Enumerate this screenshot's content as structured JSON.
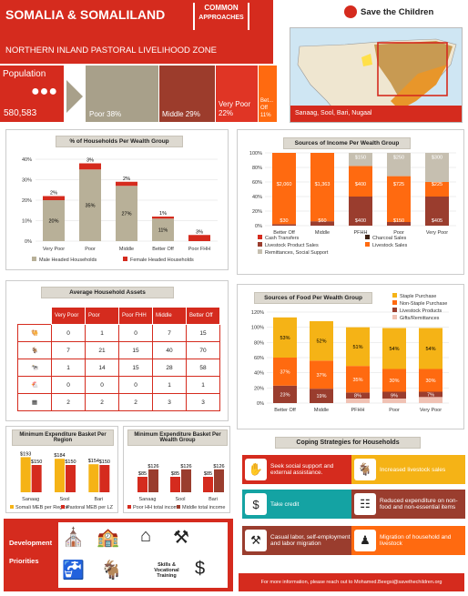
{
  "header": {
    "title": "SOMALIA & SOMALILAND",
    "tag_line1": "COMMON",
    "tag_line2": "APPROACHES",
    "zone": "NORTHERN INLAND PASTORAL LIVELIHOOD ZONE",
    "brand": "Save the Children",
    "map_caption": "Sanaag, Sool, Bari, Nugaal"
  },
  "population": {
    "label": "Population",
    "value": "580,583",
    "groups": [
      {
        "label": "Poor 38%",
        "color": "#a8a08a"
      },
      {
        "label": "Middle 29%",
        "color": "#9c3c2c"
      },
      {
        "label": "Very Poor 22%",
        "color": "#e03525"
      },
      {
        "label": "Bet... Off 11%",
        "color": "#ff6a10"
      }
    ]
  },
  "colors": {
    "red": "#d52b1e",
    "tan": "#b8b098",
    "orange": "#ff6a10",
    "yellow": "#f5b316",
    "maroon": "#9a3d2e",
    "pink": "#f0c2b4",
    "dark": "#3d2214"
  },
  "chart_data": [
    {
      "type": "bar",
      "title": "% of Households Per Wealth Group",
      "categories": [
        "Very Poor",
        "Poor",
        "Middle",
        "Better Off",
        "Poor FHH"
      ],
      "series": [
        {
          "name": "Male Headed Households",
          "values": [
            20,
            35,
            27,
            11,
            0
          ]
        },
        {
          "name": "Female Headed Households",
          "values": [
            2,
            3,
            2,
            1,
            3
          ]
        }
      ],
      "ylim": [
        0,
        40
      ],
      "yticks": [
        "0%",
        "10%",
        "20%",
        "30%",
        "40%"
      ],
      "labels_male": [
        "20%",
        "35%",
        "27%",
        "11%",
        ""
      ],
      "labels_female": [
        "2%",
        "3%",
        "2%",
        "1%",
        "3%"
      ]
    },
    {
      "type": "bar",
      "title": "Sources of Income Per Wealth Group",
      "categories": [
        "Better Off",
        "Middle",
        "PFHH",
        "Poor",
        "Very Poor"
      ],
      "ylim": [
        0,
        100
      ],
      "yticks": [
        "0%",
        "20%",
        "40%",
        "60%",
        "80%",
        "100%"
      ],
      "series": [
        {
          "name": "Cash Transfers",
          "values": [
            0,
            0,
            0,
            0,
            0
          ]
        },
        {
          "name": "Charcoal Sales",
          "values": [
            0,
            0,
            0,
            0,
            0
          ]
        },
        {
          "name": "Livestock Product Sales",
          "values": [
            2,
            6,
            40,
            5,
            40
          ]
        },
        {
          "name": "Livestock Sales",
          "values": [
            98,
            94,
            42,
            63,
            20
          ]
        },
        {
          "name": "Remittances, Social Support",
          "values": [
            0,
            0,
            18,
            32,
            40
          ]
        }
      ],
      "value_labels": [
        [
          "$30",
          "",
          "$2,060",
          ""
        ],
        [
          "$60",
          "",
          "$1,363",
          ""
        ],
        [
          "$400",
          "",
          "$400",
          "$150"
        ],
        [
          "$150",
          "",
          "$725",
          "$250"
        ],
        [
          "$405",
          "",
          "$225",
          "$300"
        ]
      ]
    },
    {
      "type": "bar",
      "title": "Sources of Food Per Wealth Group",
      "categories": [
        "Better Off",
        "Middle",
        "PFHH",
        "Poor",
        "Very Poor"
      ],
      "ylim": [
        0,
        120
      ],
      "yticks": [
        "0%",
        "20%",
        "40%",
        "60%",
        "80%",
        "100%",
        "120%"
      ],
      "series": [
        {
          "name": "Staple Purchase",
          "values": [
            53,
            52,
            51,
            54,
            54
          ]
        },
        {
          "name": "Non-Staple Purchase",
          "values": [
            37,
            37,
            35,
            30,
            30
          ]
        },
        {
          "name": "Livestock Products",
          "values": [
            23,
            19,
            8,
            9,
            7
          ]
        },
        {
          "name": "Gifts/Remittances",
          "values": [
            0,
            0,
            6,
            6,
            8
          ]
        }
      ],
      "labels": [
        [
          "53%",
          "37%",
          "23%"
        ],
        [
          "52%",
          "37%",
          "19%"
        ],
        [
          "51%",
          "35%",
          "8%"
        ],
        [
          "54%",
          "30%",
          "9%"
        ],
        [
          "54%",
          "30%",
          "7%"
        ]
      ]
    },
    {
      "type": "bar",
      "title": "Minimum Expenditure Basket Per Region",
      "categories": [
        "Sanaag",
        "Sool",
        "Bari"
      ],
      "series": [
        {
          "name": "Somali MEB per Region",
          "values": [
            193,
            184,
            154
          ]
        },
        {
          "name": "Pastoral MEB per LZ",
          "values": [
            150,
            150,
            150
          ]
        }
      ],
      "labels": [
        [
          "$193",
          "$150"
        ],
        [
          "$184",
          "$150"
        ],
        [
          "$154",
          "$150"
        ]
      ]
    },
    {
      "type": "bar",
      "title": "Minimum Expenditure Basket Per Wealth Group",
      "categories": [
        "Sanaag",
        "Sool",
        "Bari"
      ],
      "series": [
        {
          "name": "Poor HH total income",
          "values": [
            85,
            85,
            85
          ]
        },
        {
          "name": "Middle total income",
          "values": [
            126,
            126,
            126
          ]
        }
      ],
      "labels": [
        [
          "$85",
          "$126"
        ],
        [
          "$85",
          "$126"
        ],
        [
          "$85",
          "$126"
        ]
      ]
    }
  ],
  "assets": {
    "title": "Average Household Assets",
    "headers": [
      "Very Poor",
      "Poor",
      "Poor FHH",
      "Middle",
      "Better Off"
    ],
    "rows": [
      [
        "0",
        "1",
        "0",
        "7",
        "15"
      ],
      [
        "7",
        "21",
        "15",
        "40",
        "70"
      ],
      [
        "1",
        "14",
        "15",
        "28",
        "58"
      ],
      [
        "0",
        "0",
        "0",
        "1",
        "1"
      ],
      [
        "2",
        "2",
        "2",
        "3",
        "3"
      ]
    ],
    "icons": [
      "camel-icon",
      "goat-icon",
      "cattle-icon",
      "poultry-icon",
      "beehive-icon"
    ]
  },
  "coping": {
    "title": "Coping Strategies for Households",
    "items": [
      {
        "label": "Seek social support and external assistance.",
        "color": "#d52b1e"
      },
      {
        "label": "Increased livestock sales",
        "color": "#f5b316"
      },
      {
        "label": "Take credit",
        "color": "#14a3a3"
      },
      {
        "label": "Reduced expenditure on non-food and non-essential items",
        "color": "#9a3d2e"
      },
      {
        "label": "Casual labor, self-employment and labor migration",
        "color": "#9a3d2e"
      },
      {
        "label": "Migration of household and livestock",
        "color": "#ff6a10"
      }
    ]
  },
  "development": {
    "title_line1": "Development",
    "title_line2": "Priorities",
    "skills_label": "Skills & Vocational Training"
  },
  "footer": {
    "text": "For more information, please reach out to Mohamed.Beegsi@savethechildren.org"
  }
}
